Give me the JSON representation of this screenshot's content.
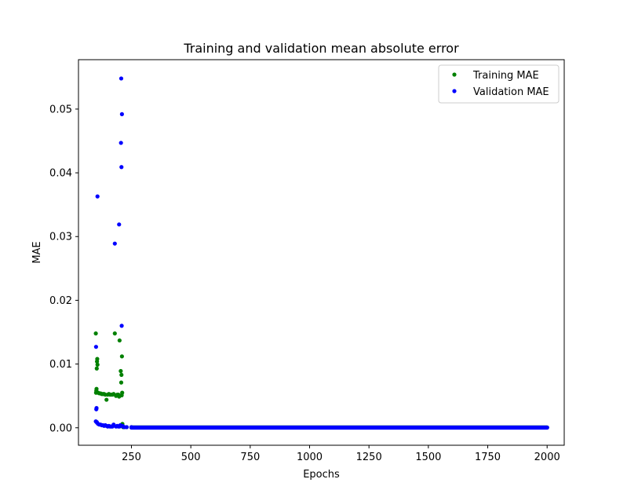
{
  "chart_data": {
    "type": "scatter",
    "title": "Training and validation mean absolute error",
    "xlabel": "Epochs",
    "ylabel": "MAE",
    "xlim": [
      27,
      2072
    ],
    "ylim": [
      -0.00274,
      0.05775
    ],
    "xticks": [
      250,
      500,
      750,
      1000,
      1250,
      1500,
      1750,
      2000
    ],
    "xtick_labels": [
      "250",
      "500",
      "750",
      "1000",
      "1250",
      "1500",
      "1750",
      "2000"
    ],
    "yticks": [
      0.0,
      0.01,
      0.02,
      0.03,
      0.04,
      0.05
    ],
    "ytick_labels": [
      "0.00",
      "0.01",
      "0.02",
      "0.03",
      "0.04",
      "0.05"
    ],
    "legend_position": "top-right",
    "grid": false,
    "series": [
      {
        "name": "Training MAE",
        "color": "#008000",
        "marker": "dot",
        "points": [
          [
            100,
            0.0148
          ],
          [
            101,
            0.0055
          ],
          [
            102,
            0.0058
          ],
          [
            103,
            0.0061
          ],
          [
            104,
            0.0093
          ],
          [
            105,
            0.0104
          ],
          [
            106,
            0.0108
          ],
          [
            107,
            0.0099
          ],
          [
            110,
            0.0055
          ],
          [
            115,
            0.0054
          ],
          [
            120,
            0.0054
          ],
          [
            125,
            0.0053
          ],
          [
            130,
            0.0053
          ],
          [
            135,
            0.0053
          ],
          [
            140,
            0.0052
          ],
          [
            145,
            0.0044
          ],
          [
            150,
            0.0052
          ],
          [
            155,
            0.0053
          ],
          [
            160,
            0.0052
          ],
          [
            165,
            0.0052
          ],
          [
            170,
            0.0052
          ],
          [
            175,
            0.0053
          ],
          [
            180,
            0.0148
          ],
          [
            185,
            0.005
          ],
          [
            190,
            0.0052
          ],
          [
            195,
            0.0052
          ],
          [
            198,
            0.0049
          ],
          [
            200,
            0.0137
          ],
          [
            205,
            0.0089
          ],
          [
            207,
            0.0071
          ],
          [
            208,
            0.0083
          ],
          [
            209,
            0.0051
          ],
          [
            210,
            0.0112
          ],
          [
            211,
            0.0055
          ],
          [
            212,
            0.0006
          ],
          [
            213,
            0.0002
          ],
          [
            215,
            0.0001
          ],
          [
            220,
            0.0001
          ],
          [
            230,
            0.0001
          ],
          [
            250,
            0.0001
          ]
        ],
        "tail": {
          "from": 250,
          "to": 2000,
          "value": 5e-05
        }
      },
      {
        "name": "Validation MAE",
        "color": "#0000ff",
        "marker": "dot",
        "points": [
          [
            100,
            0.001
          ],
          [
            101,
            0.0127
          ],
          [
            102,
            0.0029
          ],
          [
            103,
            0.0031
          ],
          [
            104,
            0.0009
          ],
          [
            105,
            0.0008
          ],
          [
            107,
            0.0363
          ],
          [
            110,
            0.0006
          ],
          [
            115,
            0.0005
          ],
          [
            120,
            0.0005
          ],
          [
            125,
            0.0004
          ],
          [
            130,
            0.0004
          ],
          [
            135,
            0.0003
          ],
          [
            140,
            0.0004
          ],
          [
            145,
            0.0003
          ],
          [
            150,
            0.0002
          ],
          [
            155,
            0.0003
          ],
          [
            160,
            0.0002
          ],
          [
            165,
            0.0002
          ],
          [
            170,
            0.0002
          ],
          [
            175,
            0.0005
          ],
          [
            180,
            0.0289
          ],
          [
            185,
            0.0002
          ],
          [
            190,
            0.0003
          ],
          [
            195,
            0.0002
          ],
          [
            198,
            0.0319
          ],
          [
            200,
            0.0002
          ],
          [
            203,
            0.0004
          ],
          [
            206,
            0.0447
          ],
          [
            207,
            0.0548
          ],
          [
            208,
            0.0409
          ],
          [
            209,
            0.016
          ],
          [
            210,
            0.0492
          ],
          [
            212,
            0.0003
          ],
          [
            215,
            0.0002
          ],
          [
            220,
            0.0001
          ],
          [
            230,
            0.0001
          ],
          [
            250,
            0.0001
          ]
        ],
        "tail": {
          "from": 250,
          "to": 2000,
          "value": 3e-05
        }
      }
    ]
  }
}
